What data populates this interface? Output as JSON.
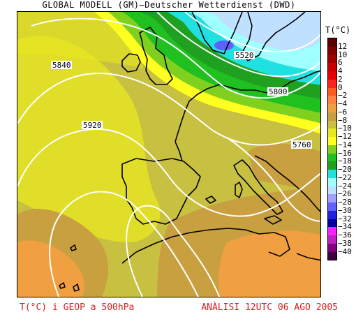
{
  "title": "GLOBAL MODELL (GM)—Deutscher Wetterdienst (DWD)",
  "legend": {
    "title": "T(°C)",
    "labels": [
      "12",
      "10",
      "6",
      "4",
      "2",
      "0",
      "−2",
      "−4",
      "−6",
      "−8",
      "−10",
      "−12",
      "−14",
      "−16",
      "−18",
      "−20",
      "−22",
      "−24",
      "−26",
      "−28",
      "−30",
      "−32",
      "−34",
      "−36",
      "−38",
      "−40"
    ],
    "colors": [
      "#5a0000",
      "#800000",
      "#a00000",
      "#c80000",
      "#e80000",
      "#ff2020",
      "#ff5a20",
      "#ff8040",
      "#f0a040",
      "#c8a040",
      "#c8c040",
      "#e8e820",
      "#ffff20",
      "#80d020",
      "#20c020",
      "#20a020",
      "#20e0e0",
      "#a0ffff",
      "#c0e0ff",
      "#a0a0ff",
      "#6060ff",
      "#2020e0",
      "#0000a0",
      "#ff20ff",
      "#c020c0",
      "#800080",
      "#400040"
    ]
  },
  "contours": {
    "labels": [
      "5840",
      "5920",
      "5520",
      "5800",
      "5760"
    ]
  },
  "footer": {
    "left": "T(°C) i GEOP a 500hPa",
    "right": "ANÀLISI 12UTC 06 AGO 2005"
  }
}
